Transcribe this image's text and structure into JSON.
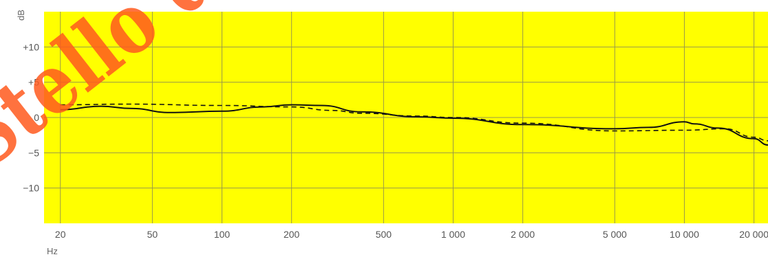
{
  "chart_data": {
    "type": "line",
    "x_scale": "log",
    "xlim": [
      17,
      23000
    ],
    "ylim": [
      -15,
      15
    ],
    "x_ticks": [
      {
        "value": 20,
        "label": "20"
      },
      {
        "value": 50,
        "label": "50"
      },
      {
        "value": 100,
        "label": "100"
      },
      {
        "value": 200,
        "label": "200"
      },
      {
        "value": 500,
        "label": "500"
      },
      {
        "value": 1000,
        "label": "1 000"
      },
      {
        "value": 2000,
        "label": "2 000"
      },
      {
        "value": 5000,
        "label": "5 000"
      },
      {
        "value": 10000,
        "label": "10 000"
      },
      {
        "value": 20000,
        "label": "20 000"
      }
    ],
    "y_ticks": [
      {
        "value": 10,
        "label": "+10"
      },
      {
        "value": 5,
        "label": "+5"
      },
      {
        "value": 0,
        "label": "0"
      },
      {
        "value": -5,
        "label": "−5"
      },
      {
        "value": -10,
        "label": "−10"
      }
    ],
    "xlabel": "Hz",
    "ylabel": "dB",
    "grid": true,
    "plot_background": "#ffff00",
    "series": [
      {
        "style": "solid",
        "color": "#111111",
        "x": [
          20,
          30,
          40,
          60,
          100,
          150,
          200,
          270,
          400,
          700,
          1000,
          2000,
          5000,
          7000,
          10000,
          11000,
          14000,
          20000,
          23000
        ],
        "y": [
          1.1,
          1.6,
          1.3,
          0.7,
          0.9,
          1.5,
          1.8,
          1.7,
          0.8,
          0.1,
          -0.1,
          -1.0,
          -1.6,
          -1.4,
          -0.6,
          -0.9,
          -1.5,
          -3.0,
          -3.9
        ]
      },
      {
        "style": "dashed",
        "color": "#111111",
        "x": [
          20,
          40,
          100,
          200,
          300,
          400,
          700,
          1000,
          2000,
          5000,
          10000,
          15000,
          20000,
          23000
        ],
        "y": [
          1.8,
          1.9,
          1.7,
          1.5,
          1.0,
          0.6,
          0.2,
          0.0,
          -0.8,
          -1.9,
          -1.8,
          -1.6,
          -2.8,
          -3.3
        ]
      }
    ]
  },
  "watermark": {
    "text": "Stello del Otto",
    "color": "#ff5a1e"
  }
}
